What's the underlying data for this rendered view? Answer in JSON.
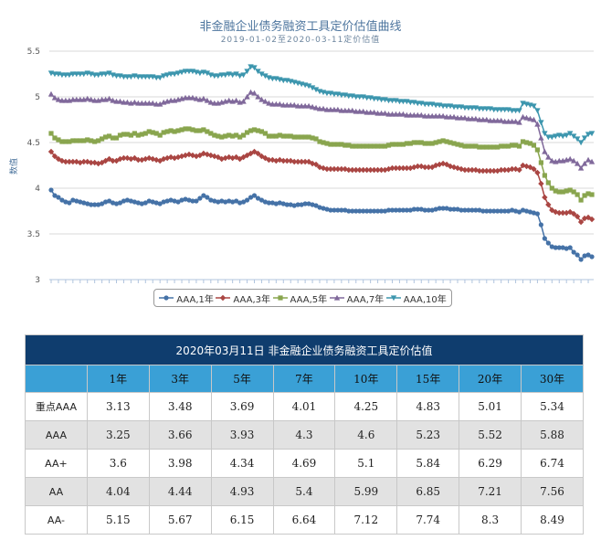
{
  "chart_data": {
    "type": "line",
    "title": "非金融企业债务融资工具定价估值曲线",
    "subtitle": "2019-01-02至2020-03-11定价估值",
    "ylabel": "数值",
    "xlabel": "",
    "ylim": [
      3,
      5.5
    ],
    "yticks": [
      "3",
      "3.5",
      "4",
      "4.5",
      "5",
      "5.5"
    ],
    "grid": true,
    "legend_position": "bottom",
    "series": [
      {
        "name": "AAA,1年",
        "color": "#4572a7",
        "marker": "circle",
        "values": [
          3.98,
          3.92,
          3.9,
          3.87,
          3.85,
          3.84,
          3.87,
          3.86,
          3.85,
          3.84,
          3.83,
          3.82,
          3.82,
          3.82,
          3.83,
          3.85,
          3.86,
          3.84,
          3.83,
          3.84,
          3.86,
          3.87,
          3.86,
          3.85,
          3.84,
          3.83,
          3.84,
          3.86,
          3.85,
          3.84,
          3.83,
          3.85,
          3.86,
          3.87,
          3.86,
          3.85,
          3.87,
          3.88,
          3.87,
          3.86,
          3.86,
          3.89,
          3.92,
          3.9,
          3.87,
          3.86,
          3.85,
          3.86,
          3.85,
          3.86,
          3.85,
          3.86,
          3.84,
          3.85,
          3.87,
          3.9,
          3.92,
          3.89,
          3.87,
          3.85,
          3.84,
          3.84,
          3.83,
          3.84,
          3.83,
          3.82,
          3.82,
          3.81,
          3.82,
          3.82,
          3.83,
          3.83,
          3.82,
          3.81,
          3.79,
          3.78,
          3.77,
          3.76,
          3.76,
          3.76,
          3.76,
          3.76,
          3.75,
          3.75,
          3.75,
          3.75,
          3.75,
          3.75,
          3.75,
          3.75,
          3.75,
          3.75,
          3.75,
          3.76,
          3.76,
          3.76,
          3.76,
          3.76,
          3.76,
          3.76,
          3.77,
          3.77,
          3.77,
          3.76,
          3.76,
          3.76,
          3.77,
          3.78,
          3.78,
          3.78,
          3.77,
          3.77,
          3.77,
          3.76,
          3.76,
          3.76,
          3.76,
          3.76,
          3.76,
          3.75,
          3.75,
          3.75,
          3.75,
          3.75,
          3.75,
          3.75,
          3.75,
          3.76,
          3.75,
          3.74,
          3.76,
          3.75,
          3.74,
          3.73,
          3.72,
          3.6,
          3.45,
          3.4,
          3.36,
          3.35,
          3.35,
          3.35,
          3.34,
          3.35,
          3.3,
          3.27,
          3.22,
          3.26,
          3.27,
          3.25
        ]
      },
      {
        "name": "AAA,3年",
        "color": "#aa4643",
        "marker": "diamond",
        "values": [
          4.4,
          4.35,
          4.32,
          4.3,
          4.29,
          4.29,
          4.29,
          4.29,
          4.28,
          4.29,
          4.29,
          4.28,
          4.28,
          4.27,
          4.28,
          4.3,
          4.32,
          4.3,
          4.3,
          4.32,
          4.33,
          4.33,
          4.32,
          4.33,
          4.31,
          4.31,
          4.32,
          4.33,
          4.32,
          4.31,
          4.3,
          4.32,
          4.33,
          4.34,
          4.33,
          4.34,
          4.35,
          4.36,
          4.37,
          4.36,
          4.35,
          4.36,
          4.38,
          4.37,
          4.36,
          4.35,
          4.34,
          4.32,
          4.33,
          4.34,
          4.33,
          4.34,
          4.32,
          4.34,
          4.36,
          4.38,
          4.4,
          4.38,
          4.35,
          4.33,
          4.31,
          4.31,
          4.3,
          4.31,
          4.3,
          4.3,
          4.3,
          4.29,
          4.29,
          4.29,
          4.29,
          4.29,
          4.27,
          4.26,
          4.23,
          4.22,
          4.21,
          4.21,
          4.21,
          4.21,
          4.21,
          4.21,
          4.2,
          4.2,
          4.2,
          4.2,
          4.2,
          4.2,
          4.2,
          4.2,
          4.2,
          4.2,
          4.2,
          4.21,
          4.22,
          4.22,
          4.22,
          4.22,
          4.22,
          4.22,
          4.23,
          4.24,
          4.24,
          4.23,
          4.23,
          4.23,
          4.25,
          4.26,
          4.27,
          4.26,
          4.24,
          4.23,
          4.22,
          4.21,
          4.2,
          4.2,
          4.2,
          4.2,
          4.19,
          4.19,
          4.19,
          4.19,
          4.19,
          4.19,
          4.2,
          4.2,
          4.2,
          4.21,
          4.21,
          4.2,
          4.25,
          4.24,
          4.23,
          4.21,
          4.17,
          4.05,
          3.9,
          3.82,
          3.76,
          3.74,
          3.73,
          3.73,
          3.73,
          3.74,
          3.72,
          3.69,
          3.63,
          3.67,
          3.68,
          3.66
        ]
      },
      {
        "name": "AAA,5年",
        "color": "#89a54e",
        "marker": "square",
        "values": [
          4.6,
          4.55,
          4.53,
          4.51,
          4.51,
          4.51,
          4.52,
          4.52,
          4.52,
          4.52,
          4.53,
          4.52,
          4.51,
          4.52,
          4.54,
          4.56,
          4.57,
          4.55,
          4.55,
          4.58,
          4.59,
          4.59,
          4.58,
          4.6,
          4.58,
          4.59,
          4.6,
          4.62,
          4.61,
          4.6,
          4.58,
          4.61,
          4.62,
          4.63,
          4.62,
          4.63,
          4.64,
          4.65,
          4.65,
          4.64,
          4.63,
          4.63,
          4.64,
          4.62,
          4.6,
          4.58,
          4.57,
          4.56,
          4.57,
          4.58,
          4.57,
          4.58,
          4.56,
          4.58,
          4.61,
          4.63,
          4.64,
          4.63,
          4.62,
          4.6,
          4.57,
          4.57,
          4.57,
          4.58,
          4.57,
          4.57,
          4.57,
          4.56,
          4.56,
          4.56,
          4.56,
          4.56,
          4.55,
          4.54,
          4.51,
          4.5,
          4.49,
          4.48,
          4.48,
          4.48,
          4.48,
          4.47,
          4.47,
          4.46,
          4.46,
          4.46,
          4.46,
          4.46,
          4.46,
          4.46,
          4.46,
          4.46,
          4.46,
          4.47,
          4.48,
          4.48,
          4.48,
          4.48,
          4.49,
          4.49,
          4.5,
          4.5,
          4.5,
          4.49,
          4.49,
          4.49,
          4.5,
          4.51,
          4.52,
          4.51,
          4.5,
          4.49,
          4.48,
          4.47,
          4.46,
          4.46,
          4.46,
          4.46,
          4.45,
          4.45,
          4.45,
          4.45,
          4.45,
          4.45,
          4.46,
          4.46,
          4.46,
          4.47,
          4.47,
          4.46,
          4.51,
          4.5,
          4.49,
          4.47,
          4.42,
          4.28,
          4.14,
          4.06,
          4.0,
          3.97,
          3.96,
          3.96,
          3.97,
          3.98,
          3.96,
          3.93,
          3.87,
          3.92,
          3.94,
          3.93
        ]
      },
      {
        "name": "AAA,7年",
        "color": "#80699b",
        "marker": "triangle",
        "values": [
          5.03,
          4.99,
          4.97,
          4.96,
          4.96,
          4.96,
          4.97,
          4.97,
          4.97,
          4.97,
          4.98,
          4.97,
          4.96,
          4.96,
          4.97,
          4.97,
          4.98,
          4.96,
          4.95,
          4.95,
          4.94,
          4.94,
          4.93,
          4.94,
          4.93,
          4.93,
          4.93,
          4.93,
          4.93,
          4.92,
          4.92,
          4.94,
          4.95,
          4.96,
          4.96,
          4.97,
          4.98,
          4.99,
          4.99,
          4.99,
          4.98,
          4.97,
          4.98,
          4.96,
          4.94,
          4.93,
          4.93,
          4.94,
          4.95,
          4.96,
          4.95,
          4.96,
          4.94,
          4.95,
          5.0,
          5.05,
          5.04,
          5.0,
          4.97,
          4.95,
          4.93,
          4.92,
          4.92,
          4.92,
          4.91,
          4.91,
          4.91,
          4.91,
          4.9,
          4.9,
          4.9,
          4.9,
          4.89,
          4.88,
          4.87,
          4.87,
          4.86,
          4.86,
          4.86,
          4.86,
          4.85,
          4.85,
          4.85,
          4.85,
          4.84,
          4.84,
          4.84,
          4.83,
          4.83,
          4.83,
          4.82,
          4.82,
          4.82,
          4.81,
          4.81,
          4.81,
          4.81,
          4.81,
          4.8,
          4.8,
          4.8,
          4.8,
          4.8,
          4.79,
          4.79,
          4.79,
          4.79,
          4.79,
          4.79,
          4.78,
          4.78,
          4.78,
          4.77,
          4.77,
          4.77,
          4.76,
          4.76,
          4.76,
          4.75,
          4.75,
          4.75,
          4.74,
          4.74,
          4.74,
          4.74,
          4.73,
          4.73,
          4.73,
          4.73,
          4.72,
          4.78,
          4.77,
          4.76,
          4.75,
          4.7,
          4.55,
          4.4,
          4.34,
          4.3,
          4.29,
          4.3,
          4.3,
          4.31,
          4.32,
          4.3,
          4.27,
          4.22,
          4.27,
          4.31,
          4.29
        ]
      },
      {
        "name": "AAA,10年",
        "color": "#3d96ae",
        "marker": "triangle-down",
        "values": [
          5.26,
          5.25,
          5.25,
          5.24,
          5.24,
          5.24,
          5.25,
          5.25,
          5.25,
          5.25,
          5.26,
          5.25,
          5.24,
          5.24,
          5.25,
          5.25,
          5.26,
          5.24,
          5.23,
          5.23,
          5.22,
          5.22,
          5.22,
          5.23,
          5.22,
          5.22,
          5.22,
          5.22,
          5.22,
          5.21,
          5.21,
          5.23,
          5.24,
          5.25,
          5.25,
          5.26,
          5.27,
          5.28,
          5.28,
          5.28,
          5.27,
          5.26,
          5.27,
          5.26,
          5.24,
          5.23,
          5.23,
          5.24,
          5.24,
          5.25,
          5.24,
          5.25,
          5.23,
          5.24,
          5.28,
          5.33,
          5.32,
          5.28,
          5.25,
          5.23,
          5.21,
          5.2,
          5.2,
          5.19,
          5.18,
          5.18,
          5.17,
          5.16,
          5.15,
          5.14,
          5.13,
          5.12,
          5.1,
          5.08,
          5.06,
          5.05,
          5.04,
          5.04,
          5.03,
          5.03,
          5.02,
          5.02,
          5.01,
          5.01,
          5.0,
          5.0,
          5.0,
          4.99,
          4.99,
          4.98,
          4.98,
          4.97,
          4.97,
          4.96,
          4.96,
          4.96,
          4.95,
          4.95,
          4.95,
          4.94,
          4.94,
          4.93,
          4.93,
          4.92,
          4.92,
          4.92,
          4.91,
          4.91,
          4.9,
          4.9,
          4.9,
          4.89,
          4.89,
          4.89,
          4.88,
          4.88,
          4.88,
          4.88,
          4.87,
          4.87,
          4.87,
          4.87,
          4.86,
          4.86,
          4.86,
          4.86,
          4.86,
          4.85,
          4.85,
          4.85,
          4.93,
          4.92,
          4.91,
          4.9,
          4.85,
          4.72,
          4.6,
          4.56,
          4.56,
          4.57,
          4.58,
          4.57,
          4.58,
          4.6,
          4.57,
          4.54,
          4.5,
          4.55,
          4.59,
          4.6
        ]
      }
    ]
  },
  "table": {
    "title": "2020年03月11日  非金融企业债务融资工具定价估值",
    "corner": "",
    "columns": [
      "1年",
      "3年",
      "5年",
      "7年",
      "10年",
      "15年",
      "20年",
      "30年"
    ],
    "rows": [
      {
        "label": "重点AAA",
        "values": [
          "3.13",
          "3.48",
          "3.69",
          "4.01",
          "4.25",
          "4.83",
          "5.01",
          "5.34"
        ]
      },
      {
        "label": "AAA",
        "values": [
          "3.25",
          "3.66",
          "3.93",
          "4.3",
          "4.6",
          "5.23",
          "5.52",
          "5.88"
        ]
      },
      {
        "label": "AA+",
        "values": [
          "3.6",
          "3.98",
          "4.34",
          "4.69",
          "5.1",
          "5.84",
          "6.29",
          "6.74"
        ]
      },
      {
        "label": "AA",
        "values": [
          "4.04",
          "4.44",
          "4.93",
          "5.4",
          "5.99",
          "6.85",
          "7.21",
          "7.56"
        ]
      },
      {
        "label": "AA-",
        "values": [
          "5.15",
          "5.67",
          "6.15",
          "6.64",
          "7.12",
          "7.74",
          "8.3",
          "8.49"
        ]
      }
    ]
  }
}
